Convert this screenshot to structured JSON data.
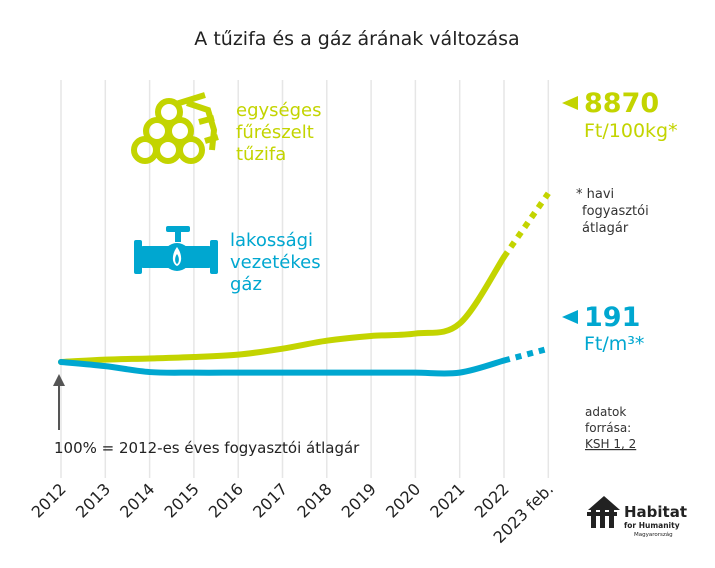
{
  "chart_data": {
    "type": "line",
    "title": "A tűzifa és a gáz árának változása",
    "categories": [
      "2012",
      "2013",
      "2014",
      "2015",
      "2016",
      "2017",
      "2018",
      "2019",
      "2020",
      "2021",
      "2022",
      "2023 feb."
    ],
    "series": [
      {
        "name": "egységes fűrészelt tűzifa",
        "color": "#c3d400",
        "values": [
          100,
          108,
          112,
          117,
          125,
          145,
          172,
          188,
          196,
          230,
          455,
          670
        ],
        "end_value": "8870",
        "end_unit": "Ft/100kg*",
        "label_lines": [
          "egységes",
          "fűrészelt",
          "tűzifa"
        ]
      },
      {
        "name": "lakossági vezetékes gáz",
        "color": "#00a7d0",
        "values": [
          100,
          86,
          66,
          64,
          64,
          64,
          64,
          64,
          64,
          64,
          105,
          145
        ],
        "end_value": "191",
        "end_unit": "Ft/m³*",
        "label_lines": [
          "lakossági",
          "vezetékes",
          "gáz"
        ]
      }
    ],
    "ylim": [
      0,
      700
    ],
    "grid": "vertical"
  },
  "notes": {
    "monthly": [
      "* havi",
      "fogyasztói",
      "átlagár"
    ],
    "source": [
      "adatok",
      "forrása:"
    ],
    "source_link": "KSH 1, 2",
    "baseline": "100% = 2012-es éves fogyasztói átlagár"
  },
  "logo": {
    "name": "Habitat",
    "sub": "for Humanity",
    "country": "Magyarország"
  },
  "colors": {
    "wood": "#c3d400",
    "gas": "#00a7d0",
    "grid": "#e6e6e6",
    "text": "#222222"
  },
  "icons": {
    "wood": "log-pile-icon",
    "gas": "gas-pipe-icon",
    "logo": "habitat-house-icon"
  }
}
